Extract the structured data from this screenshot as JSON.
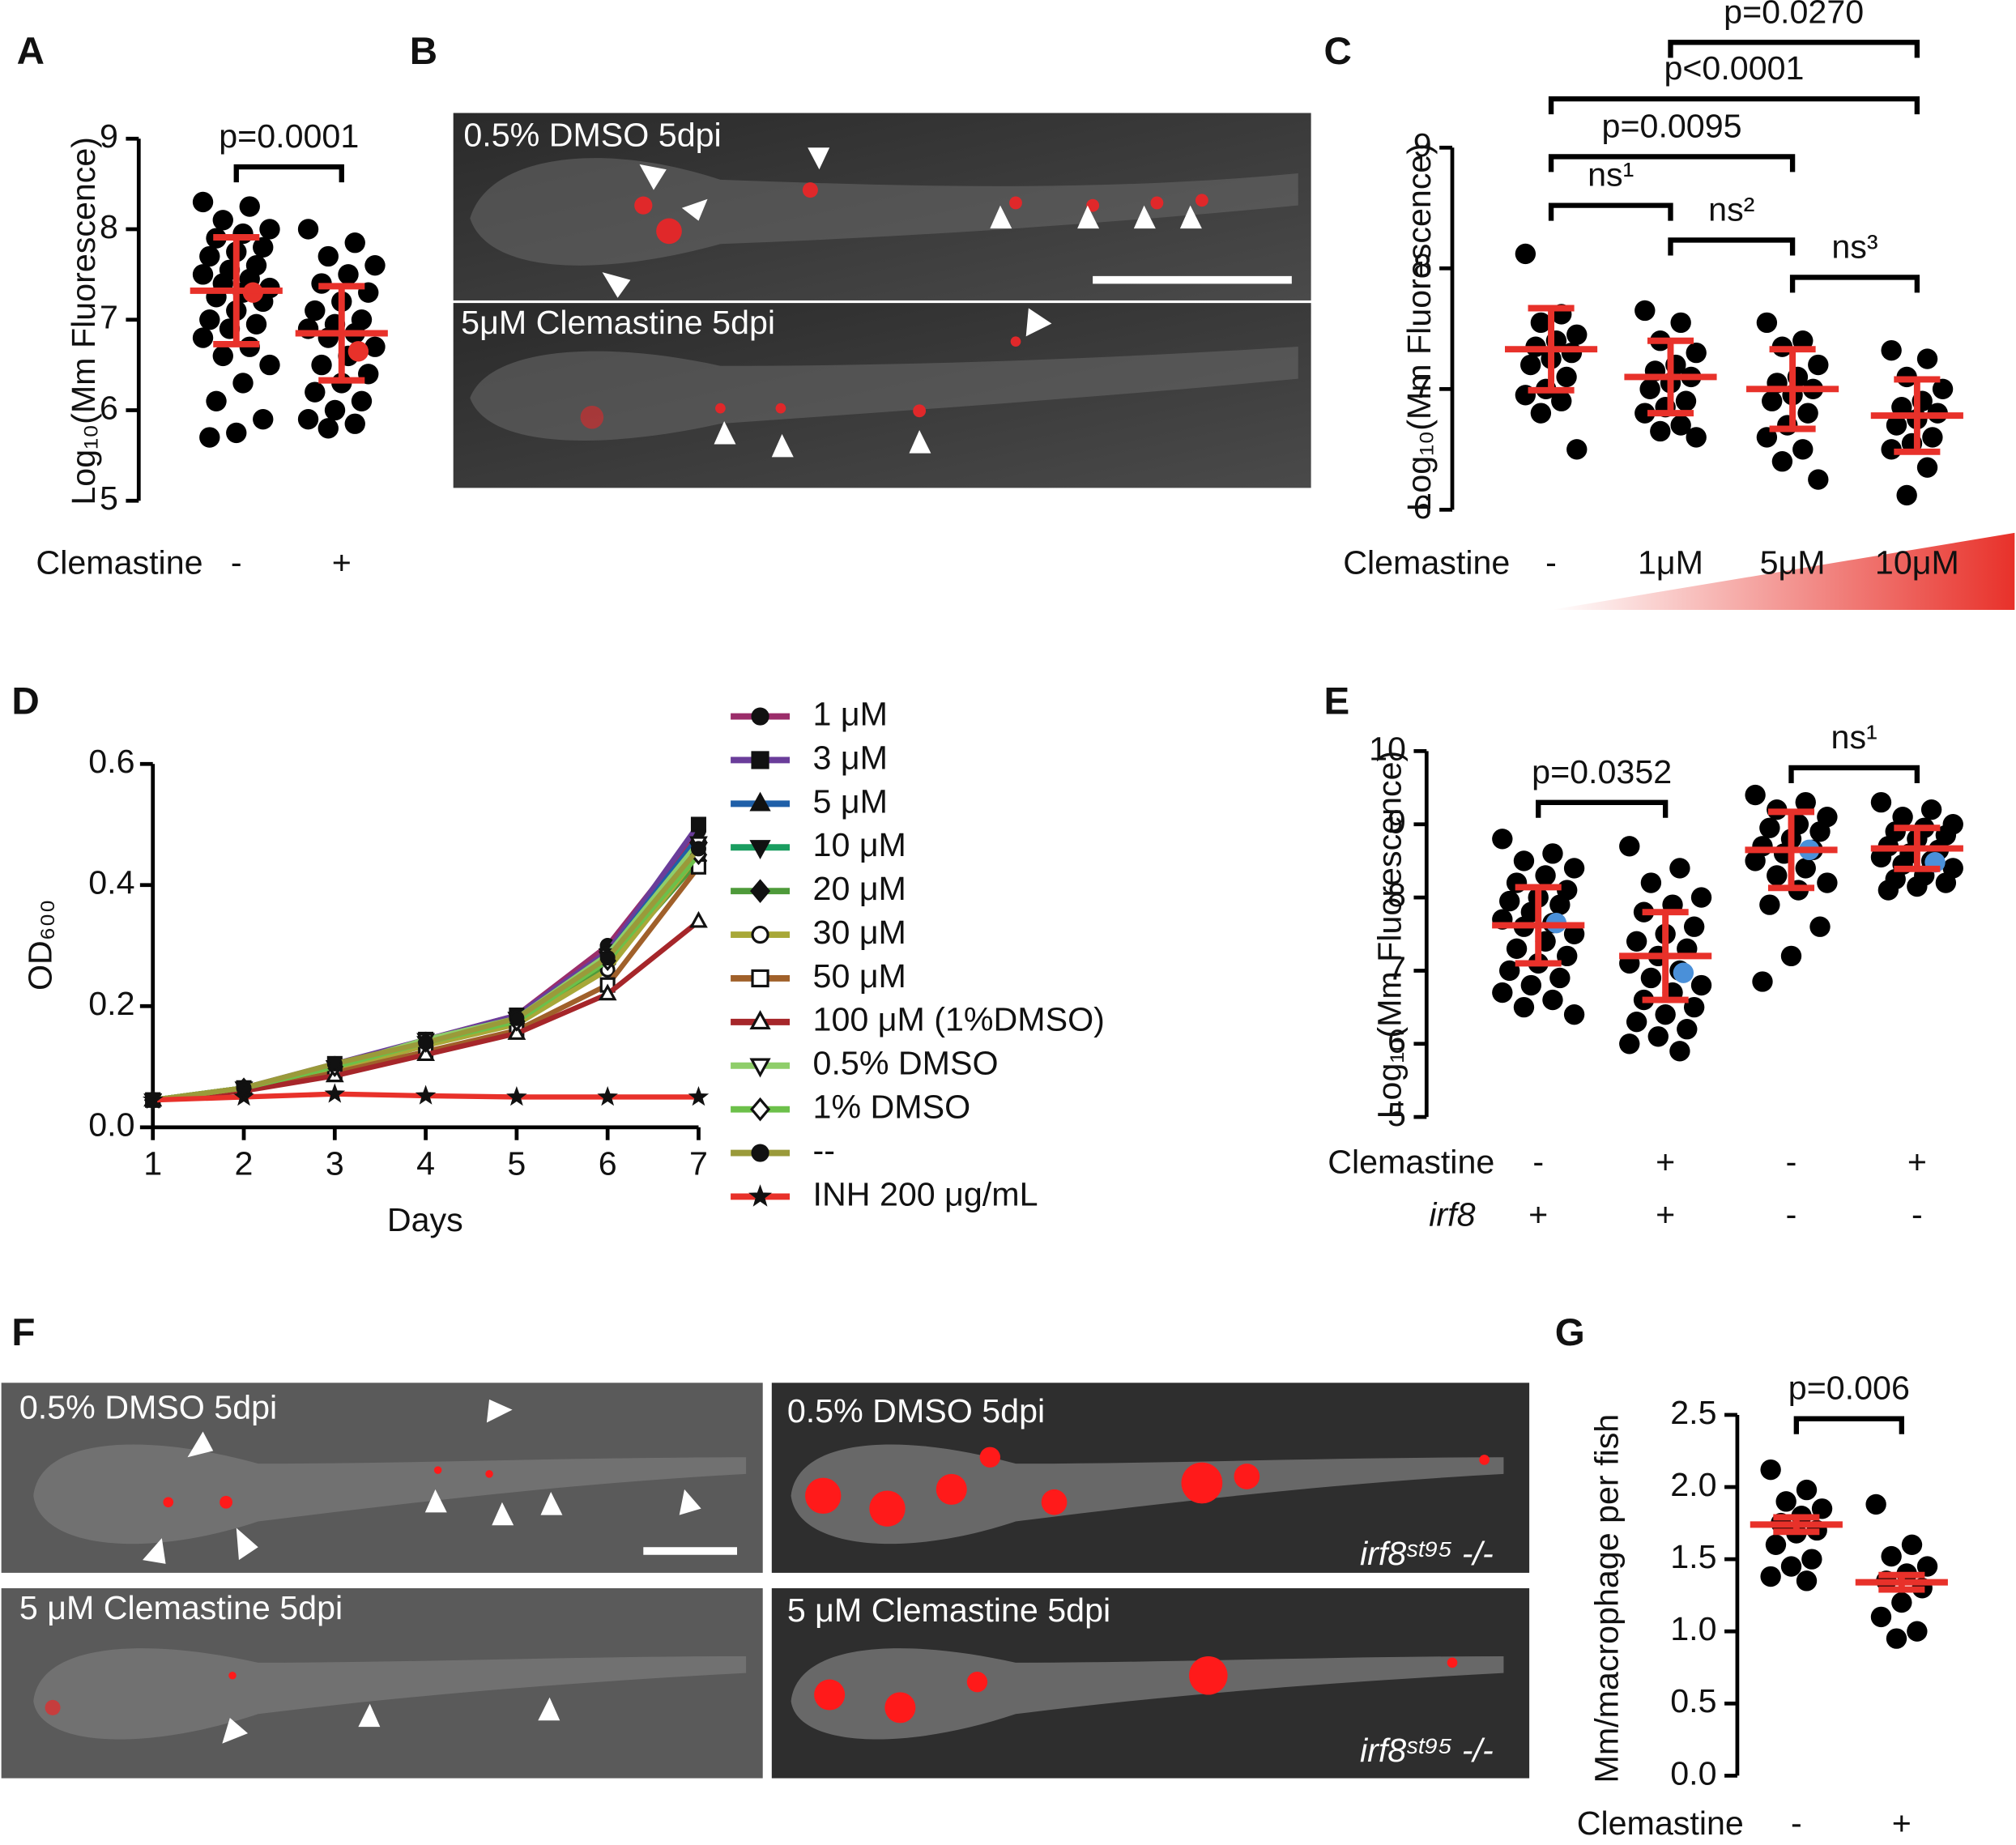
{
  "chart_data": [
    {
      "type": "dot",
      "panel": "A",
      "ylabel": "Log₁₀(Mm Fluorescence)",
      "ylim": [
        5,
        9
      ],
      "yticks": [
        5,
        6,
        7,
        8,
        9
      ],
      "color": "#000000",
      "mean_color": "#e8312a",
      "highlight_color": "#e8312a",
      "rows": [
        {
          "label": "Clemastine",
          "categories": [
            "-",
            "+"
          ]
        }
      ],
      "groups": [
        {
          "values": [
            8.3,
            8.25,
            8.1,
            8.0,
            7.95,
            7.9,
            7.8,
            7.75,
            7.7,
            7.6,
            7.55,
            7.5,
            7.45,
            7.4,
            7.35,
            7.3,
            7.25,
            7.2,
            7.1,
            7.0,
            6.95,
            6.9,
            6.8,
            6.7,
            6.6,
            6.5,
            6.3,
            6.1,
            5.9,
            5.75,
            5.7
          ],
          "mean": 7.32,
          "error": 0.59,
          "highlight": 7.3
        },
        {
          "values": [
            8.0,
            7.85,
            7.7,
            7.6,
            7.5,
            7.4,
            7.3,
            7.2,
            7.1,
            7.0,
            6.95,
            6.9,
            6.85,
            6.8,
            6.7,
            6.6,
            6.5,
            6.4,
            6.3,
            6.2,
            6.1,
            6.0,
            5.9,
            5.85,
            5.8
          ],
          "mean": 6.85,
          "error": 0.52,
          "highlight": 6.65
        }
      ],
      "comparisons": [
        {
          "groups": [
            0,
            1
          ],
          "label": "p=0.0001"
        }
      ]
    },
    {
      "type": "dot",
      "panel": "C",
      "ylabel": "Log₁₀(Mm Fluorescence)",
      "ylim": [
        6,
        9
      ],
      "yticks": [
        6,
        7,
        8,
        9
      ],
      "color": "#000000",
      "mean_color": "#e8312a",
      "rows": [
        {
          "label": "Clemastine",
          "categories": [
            "-",
            "1μM",
            "5μM",
            "10μM"
          ]
        }
      ],
      "groups": [
        {
          "values": [
            8.12,
            7.62,
            7.55,
            7.45,
            7.4,
            7.35,
            7.3,
            7.25,
            7.2,
            7.1,
            7.0,
            6.95,
            6.9,
            6.8,
            6.5
          ],
          "mean": 7.33,
          "error": 0.34
        },
        {
          "values": [
            7.65,
            7.55,
            7.4,
            7.3,
            7.2,
            7.15,
            7.1,
            7.05,
            7.0,
            6.9,
            6.85,
            6.8,
            6.7,
            6.65,
            6.6
          ],
          "mean": 7.1,
          "error": 0.3
        },
        {
          "values": [
            7.55,
            7.4,
            7.35,
            7.2,
            7.1,
            7.05,
            7.0,
            6.95,
            6.9,
            6.8,
            6.7,
            6.6,
            6.5,
            6.4,
            6.25
          ],
          "mean": 7.0,
          "error": 0.33
        },
        {
          "values": [
            7.32,
            7.25,
            7.1,
            7.0,
            6.9,
            6.85,
            6.8,
            6.75,
            6.7,
            6.6,
            6.55,
            6.5,
            6.35,
            6.12
          ],
          "mean": 6.78,
          "error": 0.3
        }
      ],
      "comparisons": [
        {
          "groups": [
            0,
            1
          ],
          "label": "ns¹"
        },
        {
          "groups": [
            1,
            2
          ],
          "label": "ns²"
        },
        {
          "groups": [
            2,
            3
          ],
          "label": "ns³"
        },
        {
          "groups": [
            0,
            2
          ],
          "label": "p=0.0095"
        },
        {
          "groups": [
            0,
            3
          ],
          "label": "p<0.0001"
        },
        {
          "groups": [
            1,
            3
          ],
          "label": "p=0.0270"
        }
      ]
    },
    {
      "type": "line",
      "panel": "D",
      "xlabel": "Days",
      "ylabel": "OD₆₀₀",
      "x": [
        1,
        2,
        3,
        4,
        5,
        6,
        7
      ],
      "xlim": [
        1,
        7
      ],
      "xticks": [
        1,
        2,
        3,
        4,
        5,
        6,
        7
      ],
      "ylim": [
        0,
        0.6
      ],
      "yticks": [
        {
          "value": 0,
          "label": "0.0"
        },
        0.2,
        0.4,
        0.6
      ],
      "series": [
        {
          "name": "1 μM",
          "color": "#9b2d6a",
          "marker": "circle",
          "filled": true,
          "values": [
            0.045,
            0.065,
            0.1,
            0.145,
            0.185,
            0.3,
            0.49
          ]
        },
        {
          "name": "3 μM",
          "color": "#6a3d9a",
          "marker": "square",
          "filled": true,
          "values": [
            0.045,
            0.065,
            0.105,
            0.145,
            0.185,
            0.29,
            0.5
          ]
        },
        {
          "name": "5 μM",
          "color": "#1f5fa8",
          "marker": "triangle",
          "filled": true,
          "values": [
            0.045,
            0.065,
            0.1,
            0.14,
            0.18,
            0.285,
            0.48
          ]
        },
        {
          "name": "10 μM",
          "color": "#1a9d60",
          "marker": "tri-down",
          "filled": true,
          "values": [
            0.045,
            0.065,
            0.1,
            0.14,
            0.18,
            0.28,
            0.46
          ]
        },
        {
          "name": "20 μM",
          "color": "#4e9a3a",
          "marker": "diamond",
          "filled": true,
          "values": [
            0.045,
            0.065,
            0.095,
            0.135,
            0.175,
            0.27,
            0.44
          ]
        },
        {
          "name": "30 μM",
          "color": "#a8a838",
          "marker": "circle",
          "filled": false,
          "values": [
            0.045,
            0.065,
            0.095,
            0.135,
            0.17,
            0.26,
            0.45
          ]
        },
        {
          "name": "50 μM",
          "color": "#a0602a",
          "marker": "square",
          "filled": false,
          "values": [
            0.045,
            0.06,
            0.09,
            0.125,
            0.16,
            0.235,
            0.43
          ]
        },
        {
          "name": "100 μM (1%DMSO)",
          "color": "#a6262a",
          "marker": "triangle",
          "filled": false,
          "values": [
            0.045,
            0.06,
            0.085,
            0.12,
            0.155,
            0.22,
            0.34
          ]
        },
        {
          "name": "0.5% DMSO",
          "color": "#8fce6a",
          "marker": "tri-down",
          "filled": false,
          "values": [
            0.045,
            0.065,
            0.1,
            0.145,
            0.18,
            0.285,
            0.47
          ]
        },
        {
          "name": "1% DMSO",
          "color": "#6cc04a",
          "marker": "diamond",
          "filled": false,
          "values": [
            0.045,
            0.065,
            0.1,
            0.14,
            0.175,
            0.275,
            0.45
          ]
        },
        {
          "name": "--",
          "color": "#9a9a3a",
          "marker": "circle",
          "filled": true,
          "values": [
            0.045,
            0.065,
            0.105,
            0.14,
            0.18,
            0.28,
            0.46
          ]
        },
        {
          "name": "INH 200 μg/mL",
          "color": "#e8312a",
          "marker": "star",
          "filled": true,
          "values": [
            0.045,
            0.05,
            0.055,
            0.052,
            0.05,
            0.05,
            0.05
          ]
        }
      ]
    },
    {
      "type": "dot",
      "panel": "E",
      "ylabel": "Log₁₀(Mm Fluorescence)",
      "ylim": [
        5,
        10
      ],
      "yticks": [
        5,
        6,
        7,
        8,
        9,
        10
      ],
      "color": "#000000",
      "mean_color": "#e8312a",
      "highlight_color": "#4a90d9",
      "rows": [
        {
          "label": "Clemastine",
          "categories": [
            "-",
            "+",
            "-",
            "+"
          ]
        },
        {
          "label": "irf8",
          "italic": true,
          "categories": [
            "+",
            "+",
            "-",
            "-"
          ]
        }
      ],
      "groups": [
        {
          "values": [
            8.8,
            8.6,
            8.5,
            8.4,
            8.3,
            8.2,
            8.1,
            8.0,
            7.95,
            7.9,
            7.8,
            7.7,
            7.65,
            7.6,
            7.5,
            7.4,
            7.3,
            7.2,
            7.1,
            7.0,
            6.9,
            6.8,
            6.7,
            6.6,
            6.5,
            6.4
          ],
          "mean": 7.62,
          "error": 0.52,
          "highlight": 7.65
        },
        {
          "values": [
            8.7,
            8.4,
            8.2,
            8.0,
            7.9,
            7.8,
            7.6,
            7.5,
            7.4,
            7.3,
            7.2,
            7.1,
            7.0,
            6.9,
            6.8,
            6.7,
            6.6,
            6.5,
            6.4,
            6.3,
            6.2,
            6.1,
            6.0,
            5.9
          ],
          "mean": 7.2,
          "error": 0.6,
          "highlight": 6.97
        },
        {
          "values": [
            9.4,
            9.3,
            9.2,
            9.1,
            9.0,
            8.95,
            8.9,
            8.8,
            8.7,
            8.65,
            8.6,
            8.5,
            8.4,
            8.3,
            8.2,
            8.1,
            7.9,
            7.6,
            7.2,
            6.85
          ],
          "mean": 8.65,
          "error": 0.52,
          "highlight": 8.65
        },
        {
          "values": [
            9.3,
            9.2,
            9.1,
            9.0,
            8.95,
            8.9,
            8.85,
            8.8,
            8.7,
            8.65,
            8.6,
            8.55,
            8.5,
            8.45,
            8.4,
            8.3,
            8.25,
            8.2,
            8.15,
            8.1
          ],
          "mean": 8.67,
          "error": 0.28,
          "highlight": 8.48
        }
      ],
      "comparisons": [
        {
          "groups": [
            0,
            1
          ],
          "label": "p=0.0352"
        },
        {
          "groups": [
            2,
            3
          ],
          "label": "ns¹"
        }
      ]
    },
    {
      "type": "dot",
      "panel": "G",
      "ylabel": "Mm/macrophage per fish",
      "ylim": [
        0,
        2.5
      ],
      "yticks": [
        {
          "value": 0,
          "label": "0.0"
        },
        0.5,
        {
          "value": 1,
          "label": "1.0"
        },
        1.5,
        {
          "value": 2,
          "label": "2.0"
        },
        2.5
      ],
      "color": "#000000",
      "mean_color": "#e8312a",
      "rows": [
        {
          "label": "Clemastine",
          "categories": [
            "-",
            "+"
          ]
        }
      ],
      "groups": [
        {
          "values": [
            2.12,
            1.98,
            1.9,
            1.85,
            1.8,
            1.75,
            1.7,
            1.68,
            1.6,
            1.5,
            1.45,
            1.38,
            1.35
          ],
          "mean": 1.74,
          "error": 0.05
        },
        {
          "values": [
            1.88,
            1.6,
            1.52,
            1.45,
            1.4,
            1.35,
            1.3,
            1.2,
            1.1,
            1.0,
            0.95
          ],
          "mean": 1.34,
          "error": 0.05
        }
      ],
      "comparisons": [
        {
          "groups": [
            0,
            1
          ],
          "label": "p=0.006"
        }
      ]
    }
  ],
  "images": [
    {
      "panel": "B",
      "labels": [
        "0.5% DMSO 5dpi",
        "5μM Clemastine 5dpi"
      ]
    },
    {
      "panel": "F",
      "labels": [
        "0.5% DMSO 5dpi",
        "5 μM Clemastine 5dpi",
        "0.5% DMSO 5dpi",
        "5 μM Clemastine 5dpi"
      ],
      "genotype": [
        "irf8ˢᵗ⁹⁵ -/-",
        "irf8ˢᵗ⁹⁵ -/-"
      ]
    }
  ]
}
